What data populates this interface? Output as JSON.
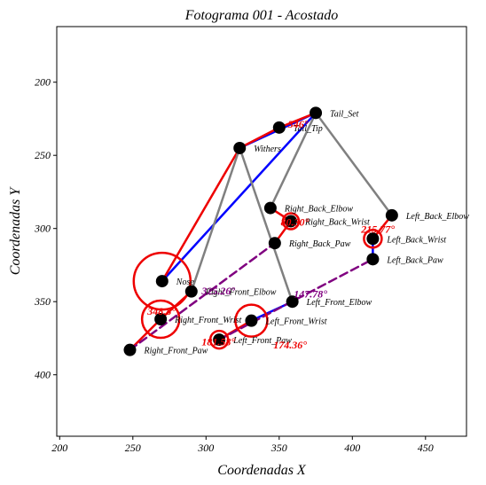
{
  "chart_data": {
    "type": "scatter",
    "title": "Fotograma 001 - Acostado",
    "xlabel": "Coordenadas X",
    "ylabel": "Coordenadas Y",
    "xlim": [
      198,
      478
    ],
    "ylim": [
      442,
      162
    ],
    "y_inverted": true,
    "grid": false,
    "x_ticks": [
      200,
      250,
      300,
      350,
      400,
      450
    ],
    "y_ticks": [
      200,
      250,
      300,
      350,
      400
    ],
    "x_tick_labels": [
      "200",
      "250",
      "300",
      "350",
      "400",
      "450"
    ],
    "y_tick_labels": [
      "200",
      "250",
      "300",
      "350",
      "400"
    ],
    "keypoints": [
      {
        "name": "Tail_Set",
        "label": "Tail_Set",
        "x": 375,
        "y": 221
      },
      {
        "name": "Tail_Tip",
        "label": "Tail_Tip",
        "x": 350,
        "y": 231
      },
      {
        "name": "Withers",
        "label": "Withers",
        "x": 323,
        "y": 245
      },
      {
        "name": "Right_Back_Elbow",
        "label": "Right_Back_Elbow",
        "x": 344,
        "y": 286
      },
      {
        "name": "Right_Back_Wrist",
        "label": "Right_Back_Wrist",
        "x": 358,
        "y": 295
      },
      {
        "name": "Right_Back_Paw",
        "label": "Right_Back_Paw",
        "x": 347,
        "y": 310
      },
      {
        "name": "Left_Back_Elbow",
        "label": "Left_Back_Elbow",
        "x": 427,
        "y": 291
      },
      {
        "name": "Left_Back_Wrist",
        "label": "Left_Back_Wrist",
        "x": 414,
        "y": 307
      },
      {
        "name": "Left_Back_Paw",
        "label": "Left_Back_Paw",
        "x": 414,
        "y": 321
      },
      {
        "name": "Nose",
        "label": "Nose",
        "x": 270,
        "y": 336
      },
      {
        "name": "Right_Front_Elbow",
        "label": "Right_Front_Elbow",
        "x": 290,
        "y": 343
      },
      {
        "name": "Left_Front_Elbow",
        "label": "Left_Front_Elbow",
        "x": 359,
        "y": 350
      },
      {
        "name": "Right_Front_Wrist",
        "label": "Right_Front_Wrist",
        "x": 269,
        "y": 362
      },
      {
        "name": "Left_Front_Wrist",
        "label": "Left_Front_Wrist",
        "x": 331,
        "y": 363
      },
      {
        "name": "Left_Front_Paw",
        "label": "Left_Front_Paw",
        "x": 309,
        "y": 376
      },
      {
        "name": "Right_Front_Paw",
        "label": "Right_Front_Paw",
        "x": 248,
        "y": 383
      }
    ],
    "connections": [
      {
        "from": "Withers",
        "to": "Tail_Set",
        "color": "#0000ff",
        "style": "solid"
      },
      {
        "from": "Nose",
        "to": "Tail_Set",
        "color": "#0000ff",
        "style": "solid"
      },
      {
        "from": "Tail_Set",
        "to": "Withers",
        "color": "#ee0000",
        "style": "solid",
        "via": "Tail_Tip"
      },
      {
        "from": "Withers",
        "to": "Nose",
        "color": "#ee0000",
        "style": "solid"
      },
      {
        "from": "Withers",
        "to": "Right_Front_Elbow",
        "color": "#808080",
        "style": "solid"
      },
      {
        "from": "Withers",
        "to": "Left_Front_Elbow",
        "color": "#808080",
        "style": "solid"
      },
      {
        "from": "Tail_Set",
        "to": "Right_Back_Elbow",
        "color": "#808080",
        "style": "solid"
      },
      {
        "from": "Tail_Set",
        "to": "Left_Back_Elbow",
        "color": "#808080",
        "style": "solid"
      },
      {
        "from": "Right_Back_Elbow",
        "to": "Right_Back_Wrist",
        "color": "#ee0000",
        "style": "solid"
      },
      {
        "from": "Right_Back_Wrist",
        "to": "Right_Back_Paw",
        "color": "#ee0000",
        "style": "solid"
      },
      {
        "from": "Left_Back_Elbow",
        "to": "Left_Back_Wrist",
        "color": "#ee0000",
        "style": "solid"
      },
      {
        "from": "Left_Back_Wrist",
        "to": "Left_Back_Paw",
        "color": "#0000ff",
        "style": "solid"
      },
      {
        "from": "Right_Front_Elbow",
        "to": "Right_Front_Wrist",
        "color": "#ee0000",
        "style": "solid"
      },
      {
        "from": "Right_Front_Wrist",
        "to": "Right_Front_Paw",
        "color": "#ee0000",
        "style": "solid"
      },
      {
        "from": "Left_Front_Elbow",
        "to": "Left_Front_Wrist",
        "color": "#0000ff",
        "style": "solid"
      },
      {
        "from": "Left_Front_Wrist",
        "to": "Left_Front_Paw",
        "color": "#ee0000",
        "style": "solid"
      },
      {
        "from": "Right_Front_Paw",
        "to": "Right_Back_Paw",
        "color": "#800080",
        "style": "dashed"
      },
      {
        "from": "Left_Front_Paw",
        "to": "Left_Back_Paw",
        "color": "#800080",
        "style": "dashed"
      }
    ],
    "angles": [
      {
        "text": "348.8°",
        "vertex": "Nose",
        "x": 260,
        "y": 359,
        "color": "#ee0000",
        "arc_radius_px": 32
      },
      {
        "text": "325.26°",
        "vertex": "Right_Front_Elbow",
        "x": 297,
        "y": 345,
        "color": "#800080",
        "arc_radius_px": 0
      },
      {
        "text": "147.78°",
        "vertex": "Left_Front_Elbow",
        "x": 360,
        "y": 347,
        "color": "#800080",
        "arc_radius_px": 0
      },
      {
        "text": "80.30°",
        "vertex": "Right_Back_Wrist",
        "x": 351,
        "y": 298,
        "color": "#ee0000",
        "arc_radius_px": 8
      },
      {
        "text": "215.77°",
        "vertex": "Left_Back_Wrist",
        "x": 406,
        "y": 303,
        "color": "#ee0000",
        "arc_radius_px": 8
      },
      {
        "text": "346°",
        "vertex": "Tail_Tip",
        "x": 356,
        "y": 231,
        "color": "#ee0000",
        "arc_radius_px": 0
      },
      {
        "text": "181.58°",
        "vertex": "Left_Front_Paw",
        "x": 297,
        "y": 380,
        "color": "#ee0000",
        "arc_radius_px": 0
      },
      {
        "text": "174.36°",
        "vertex": "Left_Front_Wrist",
        "x": 346,
        "y": 382,
        "color": "#ee0000",
        "arc_radius_px": 0
      }
    ],
    "angle_arcs": [
      {
        "vertex": "Nose",
        "radius_px": 32
      },
      {
        "vertex": "Right_Front_Wrist",
        "radius_px": 21
      },
      {
        "vertex": "Left_Front_Wrist",
        "radius_px": 18
      },
      {
        "vertex": "Right_Back_Wrist",
        "radius_px": 9
      },
      {
        "vertex": "Left_Back_Wrist",
        "radius_px": 10
      },
      {
        "vertex": "Left_Front_Paw",
        "radius_px": 10
      }
    ]
  }
}
